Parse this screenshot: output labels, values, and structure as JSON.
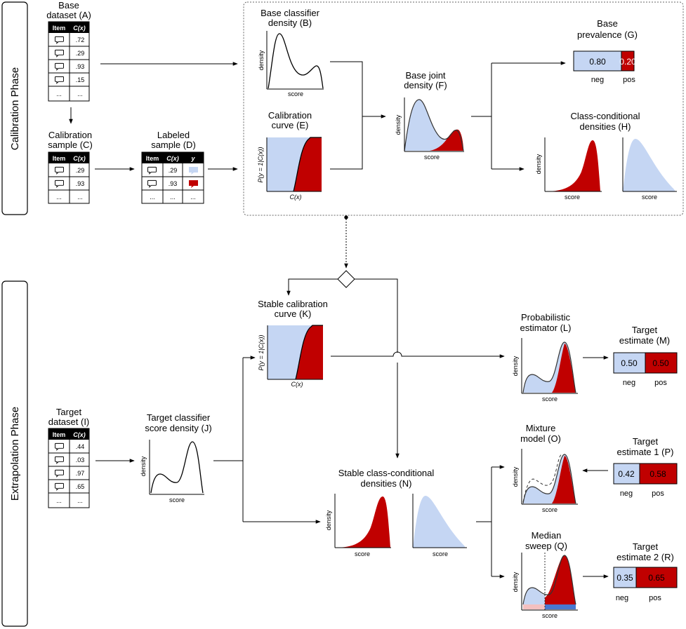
{
  "phases": {
    "calibration": "Calibration Phase",
    "extrapolation": "Extrapolation Phase"
  },
  "common": {
    "density": "density",
    "score": "score",
    "cx": "C(x)",
    "p_label": "P(y = 1|C(x))",
    "neg": "neg",
    "pos": "pos"
  },
  "tables": {
    "A": {
      "t1": "Base",
      "t2": "dataset (A)",
      "h1": "Item",
      "h2": "C(x)",
      "values": [
        ".72",
        ".29",
        ".93",
        ".15"
      ],
      "ell": "..."
    },
    "C": {
      "t1": "Calibration",
      "t2": "sample (C)",
      "h1": "Item",
      "h2": "C(x)",
      "values": [
        ".29",
        ".93"
      ],
      "ell": "..."
    },
    "D": {
      "t1": "Labeled",
      "t2": "sample (D)",
      "h1": "Item",
      "h2": "C(x)",
      "h3": "y",
      "values": [
        ".29",
        ".93"
      ],
      "ell": "..."
    },
    "I": {
      "t1": "Target",
      "t2": "dataset (I)",
      "h1": "Item",
      "h2": "C(x)",
      "values": [
        ".44",
        ".03",
        ".97",
        ".65"
      ],
      "ell": "..."
    }
  },
  "titles": {
    "B": [
      "Base classifier",
      "density (B)"
    ],
    "E": [
      "Calibration",
      "curve (E)"
    ],
    "F": [
      "Base joint",
      "density (F)"
    ],
    "G": [
      "Base",
      "prevalence (G)"
    ],
    "H": [
      "Class-conditional",
      "densities (H)"
    ],
    "J": [
      "Target classifier",
      "score density (J)"
    ],
    "K": [
      "Stable calibration",
      "curve (K)"
    ],
    "L": [
      "Probabilistic",
      "estimator (L)"
    ],
    "M": [
      "Target",
      "estimate (M)"
    ],
    "N": [
      "Stable class-conditional",
      "densities (N)"
    ],
    "O": [
      "Mixture",
      "model (O)"
    ],
    "P": [
      "Target",
      "estimate 1 (P)"
    ],
    "Q": [
      "Median",
      "sweep (Q)"
    ],
    "R": [
      "Target",
      "estimate 2 (R)"
    ]
  },
  "estimates": {
    "G": {
      "neg": 0.8,
      "pos": 0.2,
      "neg_text": "0.80",
      "pos_text": "0.20"
    },
    "M": {
      "neg": 0.5,
      "pos": 0.5,
      "neg_text": "0.50",
      "pos_text": "0.50"
    },
    "P": {
      "neg": 0.42,
      "pos": 0.58,
      "neg_text": "0.42",
      "pos_text": "0.58"
    },
    "R": {
      "neg": 0.35,
      "pos": 0.65,
      "neg_text": "0.35",
      "pos_text": "0.65"
    }
  },
  "colors": {
    "negative": "#c5d6f3",
    "positive": "#c00000",
    "border": "#000000",
    "dashed_box": "#666666"
  }
}
